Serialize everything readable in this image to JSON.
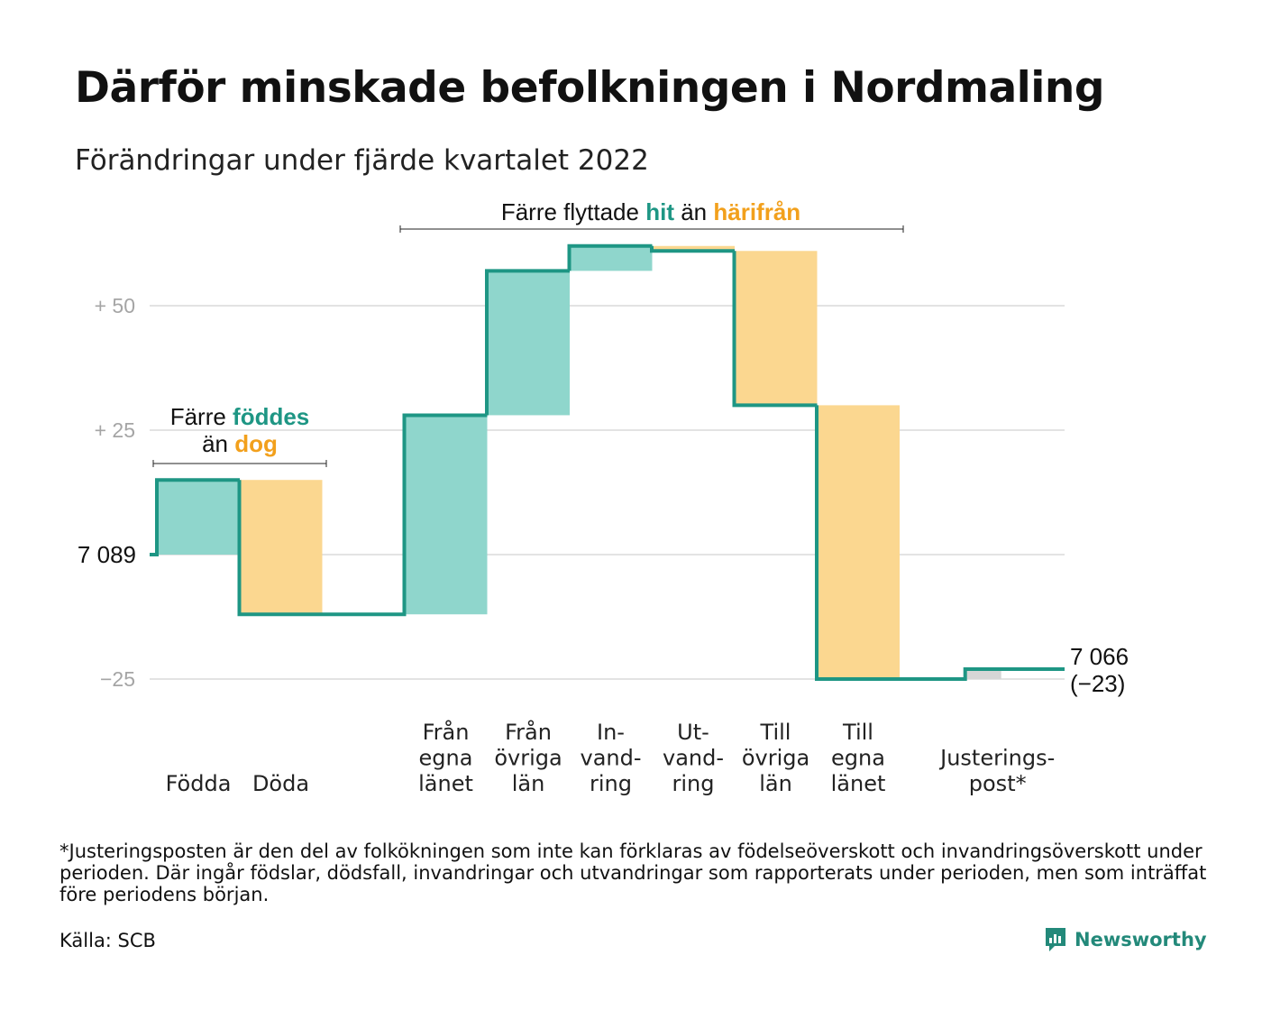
{
  "title": "Därför minskade befolkningen i Nordmaling",
  "subtitle": "Förändringar under fjärde kvartalet 2022",
  "colors": {
    "inflow": "#8fd6cc",
    "outflow": "#fbd790",
    "adjustment": "#d6d6d6",
    "line": "#1e9684",
    "highlight_teal": "#1e9684",
    "highlight_orange": "#f2a01c"
  },
  "groups": {
    "natural": {
      "line1_prefix": "Färre ",
      "line1_hl": "föddes",
      "line2_prefix": "än ",
      "line2_hl": "dog"
    },
    "migration": {
      "prefix": "Färre flyttade ",
      "hl1": "hit",
      "mid": " än ",
      "hl2": "härifrån"
    }
  },
  "chart_data": {
    "type": "waterfall",
    "start_value": 7089,
    "start_label": "7 089",
    "end_label": "7 066",
    "end_change_label": "(−23)",
    "ylim": [
      -30,
      62
    ],
    "y_ticks": [
      {
        "value": 50,
        "label": "+ 50"
      },
      {
        "value": 25,
        "label": "+ 25"
      },
      {
        "value": 0,
        "label": ""
      },
      {
        "value": -25,
        "label": "−25"
      }
    ],
    "steps": [
      {
        "key": "fodda",
        "lines": [
          "Födda"
        ],
        "change": 15,
        "kind": "inflow",
        "slot": 0
      },
      {
        "key": "doda",
        "lines": [
          "Döda"
        ],
        "change": -27,
        "kind": "outflow",
        "slot": 1
      },
      {
        "key": "fran-egna-lanet",
        "lines": [
          "Från",
          "egna",
          "länet"
        ],
        "change": 40,
        "kind": "inflow",
        "slot": 3
      },
      {
        "key": "fran-ovriga-lan",
        "lines": [
          "Från",
          "övriga",
          "län"
        ],
        "change": 29,
        "kind": "inflow",
        "slot": 4
      },
      {
        "key": "invandring",
        "lines": [
          "In-",
          "vand-",
          "ring"
        ],
        "change": 5,
        "kind": "inflow",
        "slot": 5
      },
      {
        "key": "utvandring",
        "lines": [
          "Ut-",
          "vand-",
          "ring"
        ],
        "change": -1,
        "kind": "outflow",
        "slot": 6
      },
      {
        "key": "till-ovriga-lan",
        "lines": [
          "Till",
          "övriga",
          "län"
        ],
        "change": -31,
        "kind": "outflow",
        "slot": 7
      },
      {
        "key": "till-egna-lanet",
        "lines": [
          "Till",
          "egna",
          "länet"
        ],
        "change": -55,
        "kind": "outflow",
        "slot": 8
      },
      {
        "key": "justeringspost",
        "lines": [
          "Justerings-",
          "post*"
        ],
        "change": 2,
        "kind": "adjustment",
        "slot": 9.8
      }
    ]
  },
  "footnote": "*Justeringsposten är den del av folkökningen som inte kan förklaras av födelseöverskott och invandringsöverskott under perioden. Där ingår födslar, dödsfall, invandringar och utvandringar som rapporterats under perioden, men som inträffat före periodens början.",
  "source": "Källa: SCB",
  "brand": {
    "name": "Newsworthy",
    "icon": "newsworthy-chat-chart-icon"
  }
}
